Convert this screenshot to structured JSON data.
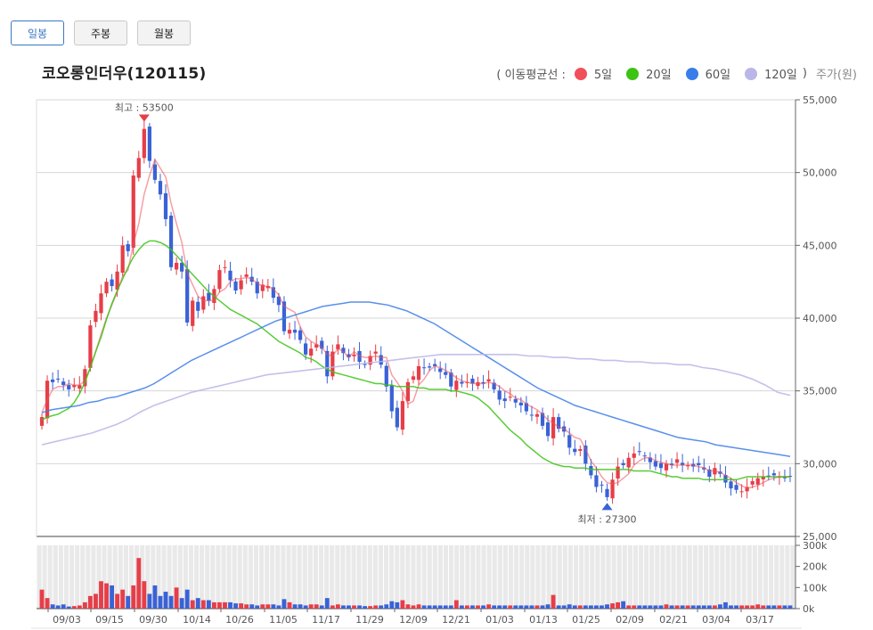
{
  "period_tabs": [
    {
      "label": "일봉",
      "active": true
    },
    {
      "label": "주봉",
      "active": false
    },
    {
      "label": "월봉",
      "active": false
    }
  ],
  "stock_title": "코오롱인더우(120115)",
  "legend": {
    "prefix": "( 이동평균선  :",
    "items": [
      {
        "label": "5일",
        "color": "#f0505a"
      },
      {
        "label": "20일",
        "color": "#3cc314"
      },
      {
        "label": "60일",
        "color": "#3b7de8"
      },
      {
        "label": "120일",
        "color": "#b9b6e8"
      }
    ],
    "suffix": ")",
    "unit": "주가(원)"
  },
  "colors": {
    "up": "#e63e48",
    "down": "#3a62d6"
  },
  "chart_data": {
    "type": "candlestick",
    "y_axis": {
      "ticks": [
        "55,000",
        "50,000",
        "45,000",
        "40,000",
        "35,000",
        "30,000",
        "25,000"
      ],
      "range": [
        25000,
        55000
      ]
    },
    "volume_axis": {
      "ticks": [
        "300k",
        "200k",
        "100k",
        "0k"
      ],
      "range": [
        0,
        300000
      ]
    },
    "x_axis": {
      "ticks": [
        "09/03",
        "09/15",
        "09/30",
        "10/14",
        "10/26",
        "11/05",
        "11/17",
        "11/29",
        "12/09",
        "12/21",
        "01/03",
        "01/13",
        "01/25",
        "02/09",
        "02/21",
        "03/04",
        "03/17"
      ]
    },
    "max_label": "최고 : 53500",
    "min_label": "최저 : 27300",
    "max_value": 53500,
    "min_value": 27300,
    "close_series": [
      33200,
      35700,
      35600,
      35800,
      35400,
      35100,
      35400,
      35400,
      36500,
      39500,
      40500,
      41700,
      42500,
      42200,
      43200,
      45000,
      44600,
      49800,
      51000,
      53000,
      50800,
      49500,
      48500,
      46800,
      43500,
      43800,
      43200,
      39700,
      41200,
      40500,
      41500,
      41200,
      42000,
      43300,
      43500,
      42600,
      41900,
      42600,
      43000,
      42500,
      41700,
      42300,
      42200,
      41400,
      40900,
      39100,
      39200,
      39000,
      38500,
      37500,
      37900,
      38200,
      37900,
      36000,
      37700,
      38200,
      37600,
      37300,
      37500,
      37000,
      36800,
      37400,
      37700,
      36800,
      35300,
      33600,
      32500,
      34300,
      35600,
      36000,
      36700,
      36600,
      36600,
      36700,
      36300,
      36100,
      35300,
      35700,
      35500,
      35600,
      35500,
      35600,
      35500,
      35800,
      35100,
      34400,
      34300,
      34600,
      34200,
      34000,
      33600,
      33300,
      33400,
      32600,
      31900,
      33200,
      32400,
      32200,
      31100,
      30800,
      31000,
      30000,
      29200,
      28400,
      28500,
      27700,
      28900,
      29800,
      29900,
      30400,
      30700,
      30800,
      30500,
      30100,
      29800,
      29700,
      30000,
      29900,
      30300,
      29900,
      29900,
      29800,
      29900,
      29600,
      29100,
      29700,
      29300,
      28700,
      28300,
      28200,
      28100,
      28400,
      28800,
      29000,
      29100,
      29100,
      29200,
      29100,
      29000,
      29100
    ],
    "ma_series": [
      {
        "name": "5일",
        "values": [
          33500,
          34400,
          35100,
          35300,
          35300,
          35500,
          35400,
          35400,
          35700,
          36600,
          37700,
          38900,
          40000,
          40900,
          41800,
          42900,
          43300,
          45100,
          46500,
          48500,
          49800,
          50900,
          50300,
          49700,
          47900,
          46500,
          45200,
          43100,
          42300,
          41500,
          41200,
          41200,
          41200,
          41800,
          42000,
          42500,
          42700,
          42700,
          42800,
          42700,
          42400,
          42200,
          42200,
          42000,
          41600,
          40800,
          40600,
          40400,
          39400,
          38700,
          38400,
          38200,
          38000,
          37500,
          37400,
          37900,
          37700,
          37300,
          37700,
          37400,
          37300,
          37300,
          37400,
          37300,
          37300,
          36100,
          35600,
          35000,
          34100,
          34300,
          35400,
          35800,
          36400,
          36700,
          36600,
          36400,
          36200,
          35900,
          35700,
          35600,
          35500,
          35500,
          35500,
          35600,
          35500,
          35300,
          35000,
          34800,
          34500,
          34400,
          34100,
          33900,
          33700,
          33400,
          33000,
          32800,
          32500,
          32400,
          32100,
          31800,
          31700,
          31000,
          30200,
          29700,
          29100,
          28700,
          28600,
          28700,
          29000,
          29300,
          29900,
          30200,
          30400,
          30400,
          30200,
          30100,
          30000,
          29900,
          29900,
          29900,
          29900,
          29900,
          29800,
          29700,
          29500,
          29500,
          29400,
          29200,
          29000,
          28700,
          28500,
          28300,
          28400,
          28500,
          28700,
          28900,
          29000,
          29100,
          29100,
          29100
        ]
      },
      {
        "name": "20일",
        "values": [
          33000,
          33200,
          33300,
          33400,
          33600,
          33800,
          34200,
          34800,
          35600,
          36600,
          37700,
          38700,
          39900,
          41000,
          41900,
          42700,
          43500,
          44200,
          44700,
          45100,
          45300,
          45300,
          45200,
          45000,
          44700,
          44300,
          43900,
          43400,
          43000,
          42600,
          42200,
          41800,
          41500,
          41200,
          40900,
          40600,
          40400,
          40200,
          40000,
          39800,
          39600,
          39300,
          39000,
          38700,
          38400,
          38200,
          38000,
          37800,
          37600,
          37300,
          37200,
          37000,
          36700,
          36500,
          36300,
          36200,
          36100,
          36000,
          35900,
          35800,
          35700,
          35600,
          35500,
          35500,
          35400,
          35400,
          35300,
          35300,
          35300,
          35300,
          35200,
          35200,
          35100,
          35100,
          35100,
          35100,
          35000,
          35000,
          34900,
          34800,
          34700,
          34500,
          34200,
          33900,
          33500,
          33100,
          32700,
          32300,
          32000,
          31700,
          31300,
          31000,
          30700,
          30400,
          30200,
          30000,
          29900,
          29800,
          29800,
          29700,
          29700,
          29700,
          29600,
          29600,
          29600,
          29600,
          29600,
          29600,
          29600,
          29600,
          29500,
          29500,
          29500,
          29500,
          29400,
          29300,
          29200,
          29100,
          29100,
          29000,
          29000,
          29000,
          29000,
          28900,
          28900,
          28900,
          28900,
          28900,
          28900,
          28900,
          29000,
          29100,
          29100,
          29100,
          29100,
          29100,
          29100,
          29100,
          29100,
          29100
        ]
      },
      {
        "name": "60일",
        "values": [
          33500,
          33700,
          33800,
          33900,
          34000,
          34200,
          34300,
          34500,
          34600,
          34800,
          35000,
          35200,
          35500,
          35900,
          36300,
          36700,
          37100,
          37400,
          37700,
          38000,
          38300,
          38600,
          38900,
          39200,
          39500,
          39800,
          40000,
          40200,
          40400,
          40600,
          40800,
          40900,
          41000,
          41100,
          41100,
          41100,
          41000,
          40900,
          40700,
          40500,
          40200,
          39900,
          39600,
          39200,
          38800,
          38400,
          38000,
          37600,
          37200,
          36800,
          36400,
          36000,
          35600,
          35200,
          34900,
          34600,
          34300,
          34000,
          33800,
          33600,
          33400,
          33200,
          33000,
          32800,
          32600,
          32400,
          32200,
          32000,
          31800,
          31700,
          31600,
          31500,
          31300,
          31200,
          31100,
          31000,
          30900,
          30800,
          30700,
          30600,
          30500
        ]
      },
      {
        "name": "120일",
        "values": [
          31300,
          31500,
          31700,
          31900,
          32100,
          32400,
          32700,
          33100,
          33600,
          34000,
          34300,
          34600,
          34900,
          35100,
          35300,
          35500,
          35700,
          35900,
          36100,
          36200,
          36300,
          36400,
          36500,
          36600,
          36700,
          36800,
          36900,
          37000,
          37100,
          37200,
          37300,
          37400,
          37500,
          37500,
          37500,
          37500,
          37500,
          37500,
          37500,
          37400,
          37400,
          37300,
          37300,
          37200,
          37200,
          37100,
          37100,
          37000,
          37000,
          36900,
          36900,
          36800,
          36800,
          36600,
          36500,
          36300,
          36100,
          35800,
          35400,
          34900,
          34700
        ]
      }
    ],
    "volume_series": [
      90000,
      50000,
      20000,
      15000,
      20000,
      10000,
      12000,
      15000,
      30000,
      60000,
      70000,
      130000,
      120000,
      110000,
      70000,
      90000,
      60000,
      110000,
      240000,
      130000,
      70000,
      110000,
      60000,
      80000,
      60000,
      100000,
      50000,
      90000,
      40000,
      50000,
      40000,
      40000,
      30000,
      30000,
      30000,
      30000,
      25000,
      25000,
      20000,
      20000,
      15000,
      20000,
      20000,
      20000,
      15000,
      45000,
      30000,
      20000,
      20000,
      15000,
      20000,
      20000,
      15000,
      50000,
      15000,
      20000,
      15000,
      15000,
      15000,
      15000,
      12000,
      12000,
      15000,
      15000,
      20000,
      35000,
      30000,
      40000,
      20000,
      15000,
      20000,
      15000,
      15000,
      15000,
      15000,
      15000,
      15000,
      40000,
      15000,
      15000,
      15000,
      15000,
      15000,
      20000,
      15000,
      15000,
      15000,
      15000,
      15000,
      15000,
      15000,
      15000,
      15000,
      15000,
      20000,
      65000,
      15000,
      15000,
      20000,
      15000,
      15000,
      15000,
      15000,
      15000,
      15000,
      20000,
      25000,
      30000,
      35000,
      15000,
      15000,
      15000,
      15000,
      15000,
      15000,
      15000,
      20000,
      15000,
      15000,
      15000,
      15000,
      15000,
      15000,
      15000,
      15000,
      15000,
      20000,
      30000,
      15000,
      15000,
      15000,
      15000,
      15000,
      20000,
      15000,
      15000,
      15000,
      15000,
      15000,
      15000
    ]
  }
}
